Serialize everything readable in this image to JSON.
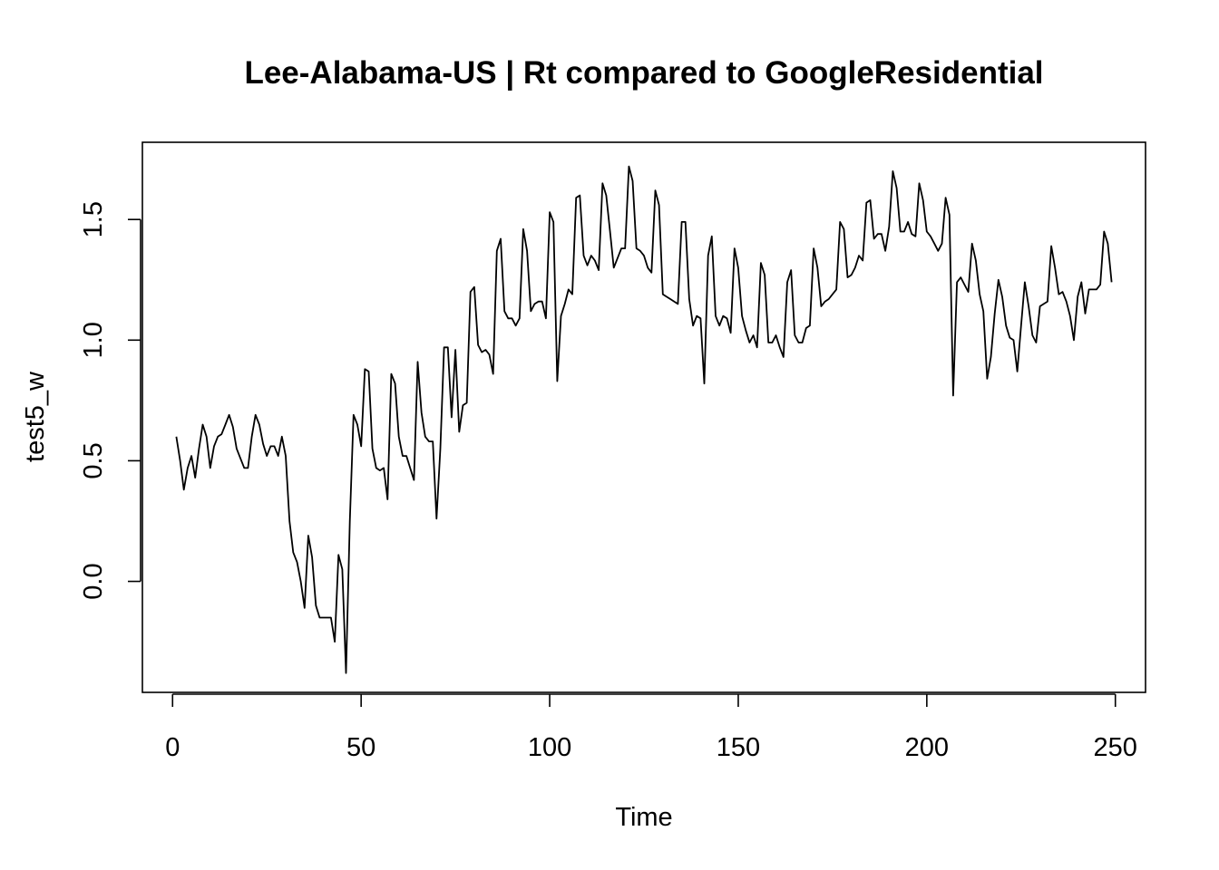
{
  "chart_data": {
    "type": "line",
    "title": "Lee-Alabama-US | Rt compared to GoogleResidential",
    "xlabel": "Time",
    "ylabel": "test5_w",
    "xlim": [
      -8,
      258
    ],
    "ylim": [
      -0.46,
      1.82
    ],
    "x_ticks": [
      0,
      50,
      100,
      150,
      200,
      250
    ],
    "x_tick_labels": [
      "0",
      "50",
      "100",
      "150",
      "200",
      "250"
    ],
    "y_ticks": [
      0.0,
      0.5,
      1.0,
      1.5
    ],
    "y_tick_labels": [
      "0.0",
      "0.5",
      "1.0",
      "1.5"
    ],
    "grid": false,
    "legend": "none",
    "line_color": "#000000",
    "x_start": 1,
    "series": [
      {
        "values": [
          0.6,
          0.5,
          0.38,
          0.47,
          0.52,
          0.43,
          0.55,
          0.65,
          0.6,
          0.47,
          0.56,
          0.6,
          0.61,
          0.65,
          0.69,
          0.64,
          0.55,
          0.51,
          0.47,
          0.47,
          0.6,
          0.69,
          0.65,
          0.57,
          0.52,
          0.56,
          0.56,
          0.52,
          0.6,
          0.52,
          0.25,
          0.12,
          0.08,
          0.0,
          -0.11,
          0.19,
          0.1,
          -0.1,
          -0.15,
          -0.15,
          -0.15,
          -0.15,
          -0.25,
          0.11,
          0.05,
          -0.38,
          0.25,
          0.69,
          0.65,
          0.56,
          0.88,
          0.87,
          0.55,
          0.47,
          0.46,
          0.47,
          0.34,
          0.86,
          0.82,
          0.6,
          0.52,
          0.52,
          0.47,
          0.42,
          0.91,
          0.7,
          0.6,
          0.58,
          0.58,
          0.26,
          0.55,
          0.97,
          0.97,
          0.68,
          0.96,
          0.62,
          0.73,
          0.74,
          1.2,
          1.22,
          0.98,
          0.95,
          0.96,
          0.94,
          0.86,
          1.37,
          1.42,
          1.12,
          1.09,
          1.09,
          1.06,
          1.09,
          1.46,
          1.37,
          1.12,
          1.15,
          1.16,
          1.16,
          1.09,
          1.53,
          1.49,
          0.83,
          1.1,
          1.15,
          1.21,
          1.19,
          1.59,
          1.6,
          1.35,
          1.31,
          1.35,
          1.33,
          1.29,
          1.65,
          1.6,
          1.45,
          1.3,
          1.34,
          1.38,
          1.38,
          1.72,
          1.66,
          1.38,
          1.37,
          1.35,
          1.3,
          1.28,
          1.62,
          1.56,
          1.19,
          1.18,
          1.17,
          1.16,
          1.15,
          1.49,
          1.49,
          1.17,
          1.06,
          1.1,
          1.09,
          0.82,
          1.35,
          1.43,
          1.1,
          1.06,
          1.1,
          1.09,
          1.03,
          1.38,
          1.3,
          1.1,
          1.04,
          0.99,
          1.02,
          0.97,
          1.32,
          1.27,
          0.99,
          0.99,
          1.02,
          0.97,
          0.93,
          1.24,
          1.29,
          1.02,
          0.99,
          0.99,
          1.05,
          1.06,
          1.38,
          1.3,
          1.14,
          1.16,
          1.17,
          1.19,
          1.21,
          1.49,
          1.46,
          1.26,
          1.27,
          1.3,
          1.35,
          1.33,
          1.57,
          1.58,
          1.42,
          1.44,
          1.44,
          1.37,
          1.47,
          1.7,
          1.63,
          1.45,
          1.45,
          1.49,
          1.44,
          1.43,
          1.65,
          1.58,
          1.45,
          1.43,
          1.4,
          1.37,
          1.4,
          1.59,
          1.52,
          0.77,
          1.24,
          1.26,
          1.23,
          1.2,
          1.4,
          1.33,
          1.19,
          1.12,
          0.84,
          0.93,
          1.11,
          1.25,
          1.18,
          1.06,
          1.01,
          1.0,
          0.87,
          1.06,
          1.24,
          1.14,
          1.02,
          0.99,
          1.14,
          1.15,
          1.16,
          1.39,
          1.3,
          1.19,
          1.2,
          1.16,
          1.1,
          1.0,
          1.18,
          1.24,
          1.11,
          1.21,
          1.21,
          1.21,
          1.23,
          1.45,
          1.4,
          1.24
        ]
      }
    ]
  }
}
